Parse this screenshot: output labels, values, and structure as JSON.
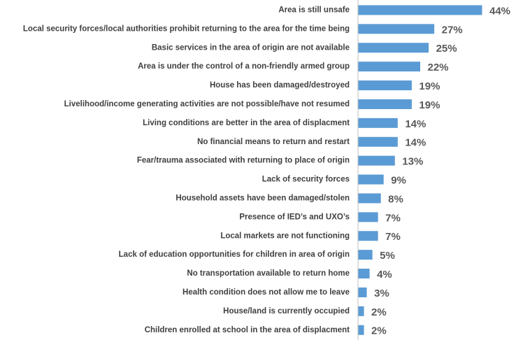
{
  "chart_data": {
    "type": "bar",
    "orientation": "horizontal",
    "title": "",
    "xlabel": "",
    "ylabel": "",
    "xlim": [
      0,
      44
    ],
    "grid": false,
    "legend": "none",
    "bar_color": "#5B9BD5",
    "axis_color": "#BFBFBF",
    "label_suffix": "%",
    "categories": [
      "Area is still unsafe",
      "Local security forces/local authorities prohibit returning to the area for the time being",
      "Basic services in the area of origin are not available",
      "Area is under the control of a non-friendly armed group",
      "House has been damaged/destroyed",
      "Livelihood/income generating activities are not possible/have not resumed",
      "Living conditions are better in the area of displacment",
      "No financial means to return and restart",
      "Fear/trauma associated with returning to place of origin",
      "Lack of security forces",
      "Household assets have been damaged/stolen",
      "Presence of IED’s and UXO’s",
      "Local markets are not functioning",
      "Lack of education opportunities for children in area of origin",
      "No transportation available to return home",
      "Health condition does not allow me to leave",
      "House/land is currently occupied",
      "Children enrolled at school in the area of displacment"
    ],
    "values": [
      44,
      27,
      25,
      22,
      19,
      19,
      14,
      14,
      13,
      9,
      8,
      7,
      7,
      5,
      4,
      3,
      2,
      2
    ]
  }
}
